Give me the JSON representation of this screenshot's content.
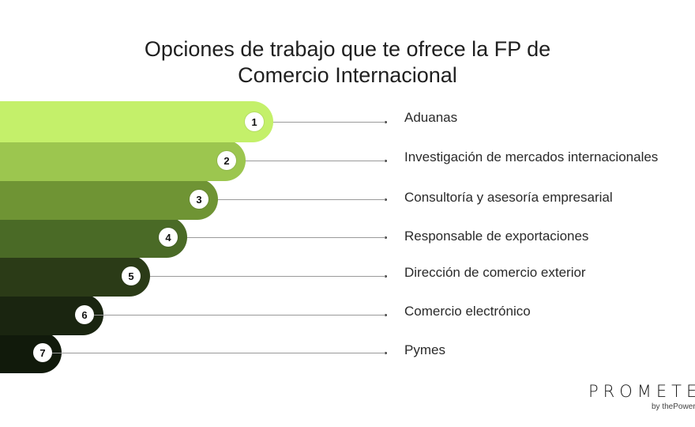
{
  "title": {
    "line1": "Opciones de trabajo que te ofrece la FP de",
    "line2": "Comercio Internacional"
  },
  "items": [
    {
      "number": "1",
      "label": "Aduanas",
      "color": "#c4f06a"
    },
    {
      "number": "2",
      "label": "Investigación de mercados internacionales",
      "color": "#9cc64f"
    },
    {
      "number": "3",
      "label": "Consultoría y asesoría empresarial",
      "color": "#6f9434"
    },
    {
      "number": "4",
      "label": "Responsable de exportaciones",
      "color": "#4a6a26"
    },
    {
      "number": "5",
      "label": "Dirección de comercio exterior",
      "color": "#2b3b17"
    },
    {
      "number": "6",
      "label": "Comercio electrónico",
      "color": "#1a2510"
    },
    {
      "number": "7",
      "label": "Pymes",
      "color": "#111a0b"
    }
  ],
  "logo": {
    "word": "PROMETEO",
    "tagline": "by thePower"
  }
}
